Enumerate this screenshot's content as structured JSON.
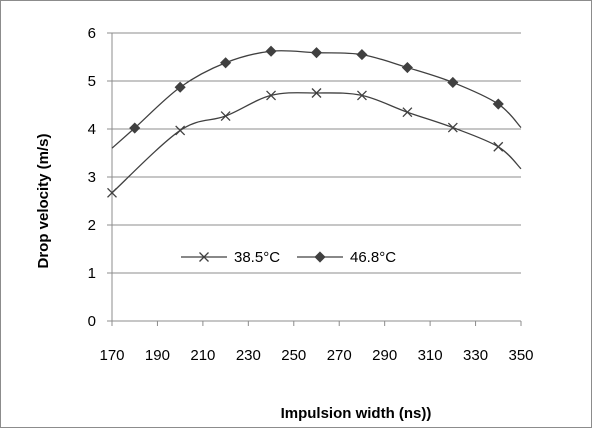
{
  "chart_data": {
    "type": "line",
    "title": "",
    "xlabel": "Impulsion width  (ns))",
    "ylabel": "Drop velocity  (m/s)",
    "xlim": [
      170,
      350
    ],
    "ylim": [
      0,
      6
    ],
    "x_ticks": [
      170,
      190,
      210,
      230,
      250,
      270,
      290,
      310,
      330,
      350
    ],
    "y_ticks": [
      0,
      1,
      2,
      3,
      4,
      5,
      6
    ],
    "grid": "horizontal",
    "legend_position": "inside-center-left",
    "series": [
      {
        "name": "38.5°C",
        "marker": "x",
        "color": "#404040",
        "x": [
          170,
          200,
          220,
          240,
          260,
          280,
          300,
          320,
          340
        ],
        "y": [
          2.67,
          3.97,
          4.27,
          4.7,
          4.75,
          4.7,
          4.35,
          4.03,
          3.63
        ],
        "line_extends_to": [
          350,
          3.17
        ]
      },
      {
        "name": "46.8°C",
        "marker": "diamond",
        "color": "#404040",
        "x": [
          180,
          200,
          220,
          240,
          260,
          280,
          300,
          320,
          340
        ],
        "y": [
          4.02,
          4.87,
          5.38,
          5.62,
          5.59,
          5.55,
          5.28,
          4.97,
          4.52
        ],
        "line_extends_from": [
          170,
          3.6
        ],
        "line_extends_to": [
          350,
          4.03
        ]
      }
    ]
  }
}
